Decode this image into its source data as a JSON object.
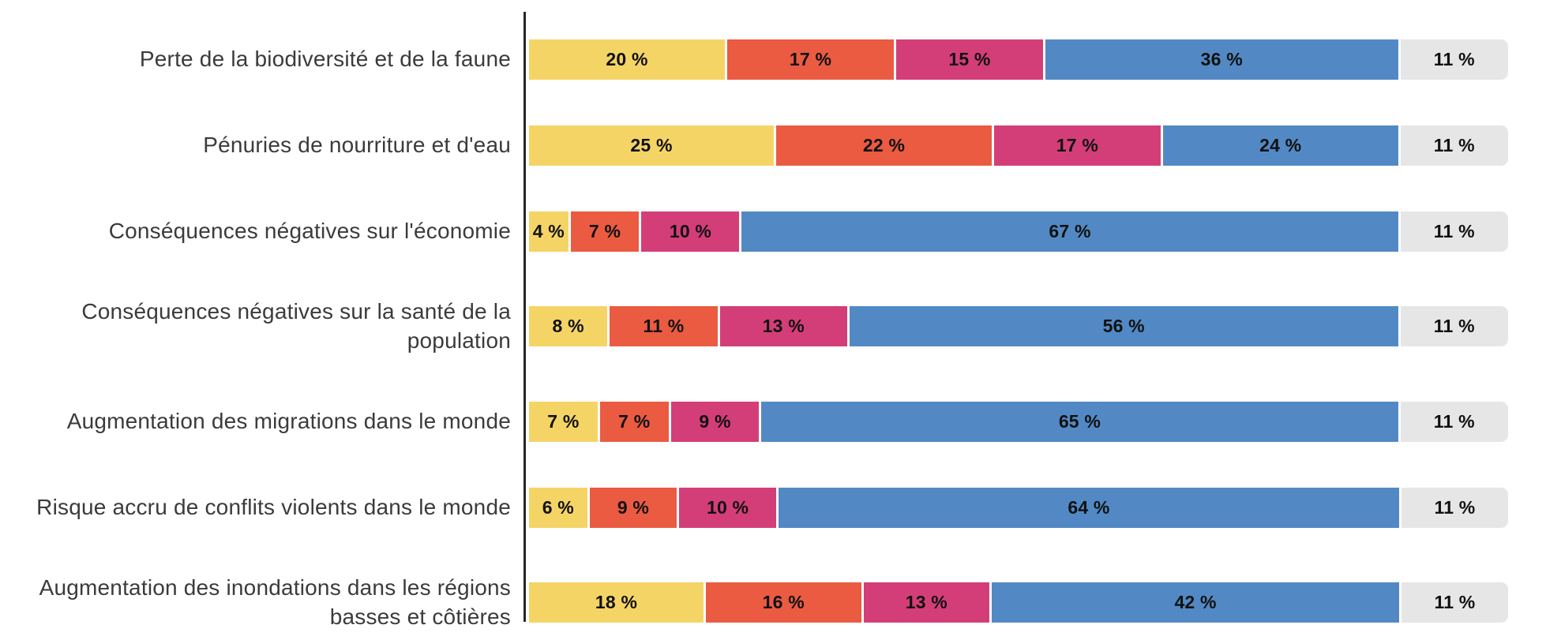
{
  "colors": {
    "segment_yellow": "#F5D466",
    "segment_orange": "#EA5B42",
    "segment_pink": "#D43E78",
    "segment_blue": "#5289C4",
    "segment_gray": "#E6E6E6",
    "axis_line": "#262626",
    "category_text": "#3B3B3B",
    "value_text": "#111111",
    "background": "#FFFFFF"
  },
  "chart_data": {
    "type": "bar",
    "stacked": true,
    "orientation": "horizontal",
    "title": "",
    "xlabel": "",
    "ylabel": "",
    "unit": "%",
    "value_suffix": " %",
    "xlim": [
      0,
      100
    ],
    "grid": false,
    "legend_position": "none",
    "categories": [
      "Perte de la biodiversité et de la faune",
      "Pénuries de nourriture et d'eau",
      "Conséquences négatives sur l'économie",
      "Conséquences négatives sur la santé de la population",
      "Augmentation des migrations dans le monde",
      "Risque accru de conflits violents dans le monde",
      "Augmentation des inondations dans les régions basses et côtières"
    ],
    "series": [
      {
        "name": "yellow",
        "color": "#F5D466",
        "values": [
          20,
          25,
          4,
          8,
          7,
          6,
          18
        ]
      },
      {
        "name": "orange",
        "color": "#EA5B42",
        "values": [
          17,
          22,
          7,
          11,
          7,
          9,
          16
        ]
      },
      {
        "name": "pink",
        "color": "#D43E78",
        "values": [
          15,
          17,
          10,
          13,
          9,
          10,
          13
        ]
      },
      {
        "name": "blue",
        "color": "#5289C4",
        "values": [
          36,
          24,
          67,
          56,
          65,
          64,
          42
        ]
      },
      {
        "name": "gray",
        "color": "#E6E6E6",
        "values": [
          11,
          11,
          11,
          11,
          11,
          11,
          11
        ]
      }
    ]
  }
}
